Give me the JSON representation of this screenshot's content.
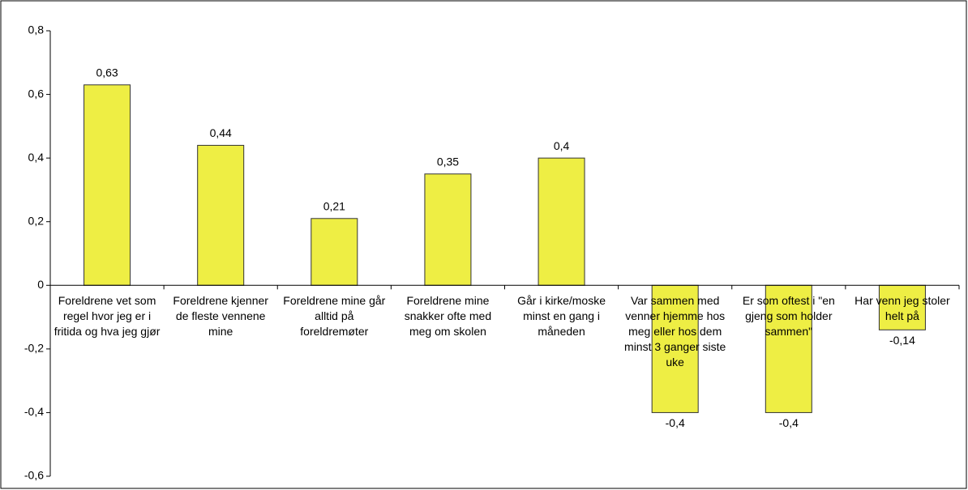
{
  "chart_data": {
    "type": "bar",
    "categories": [
      "Foreldrene vet som regel hvor jeg er i fritida og hva jeg gjør",
      "Foreldrene kjenner de fleste vennene mine",
      "Foreldrene mine går alltid på foreldremøter",
      "Foreldrene mine snakker ofte med meg om skolen",
      "Går i kirke/moske minst en gang i måneden",
      "Var sammen med venner hjemme hos meg eller hos dem minst 3 ganger siste uke",
      "Er som oftest i \"en gjeng som holder sammen\"",
      "Har venn jeg stoler helt på"
    ],
    "values": [
      0.63,
      0.44,
      0.21,
      0.35,
      0.4,
      -0.4,
      -0.4,
      -0.14
    ],
    "value_labels": [
      "0,63",
      "0,44",
      "0,21",
      "0,35",
      "0,4",
      "-0,4",
      "-0,4",
      "-0,14"
    ],
    "color": "#eeee44",
    "ylim": [
      -0.6,
      0.8
    ],
    "yticks": [
      {
        "value": -0.6,
        "label": "-0,6"
      },
      {
        "value": -0.4,
        "label": "-0,4"
      },
      {
        "value": -0.2,
        "label": "-0,2"
      },
      0,
      {
        "value": 0.2,
        "label": "0,2"
      },
      {
        "value": 0.4,
        "label": "0,4"
      },
      {
        "value": 0.6,
        "label": "0,6"
      },
      {
        "value": 0.8,
        "label": "0,8"
      }
    ],
    "grid": false
  }
}
